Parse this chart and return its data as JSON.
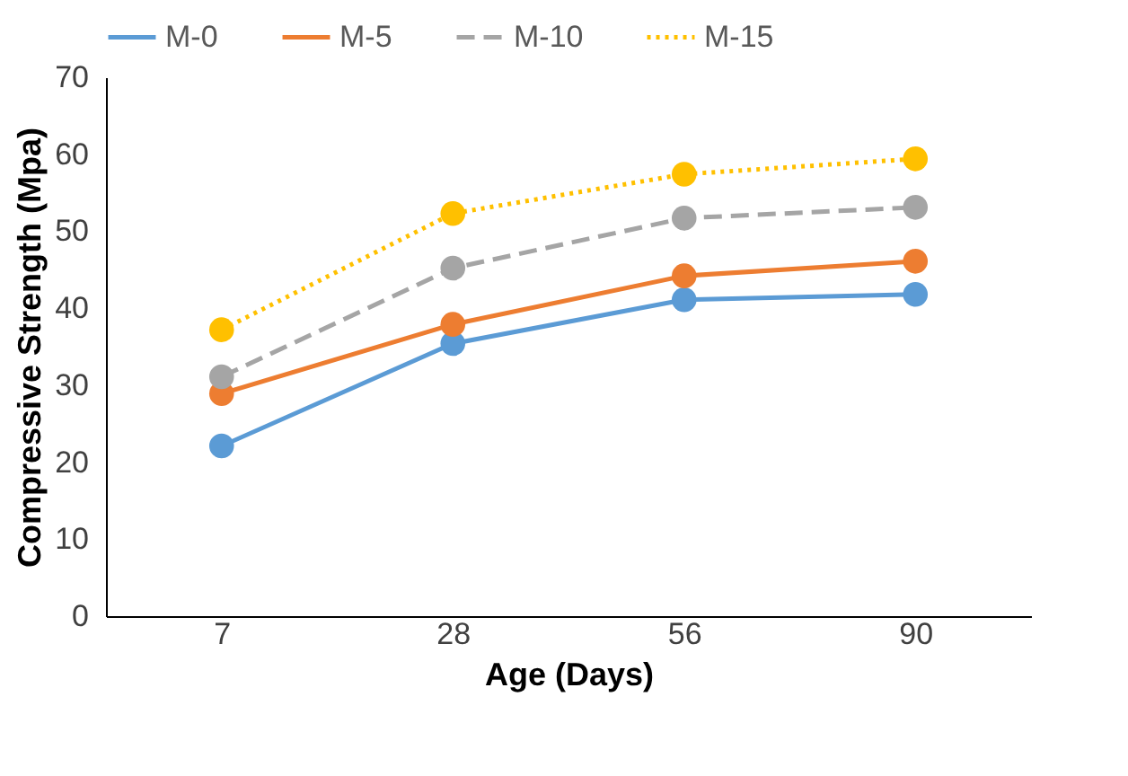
{
  "chart_data": {
    "type": "line",
    "xlabel": "Age (Days)",
    "ylabel": "Compressive Strength (Mpa)",
    "categories": [
      "7",
      "28",
      "56",
      "90"
    ],
    "series": [
      {
        "name": "M-0",
        "color": "#5b9bd5",
        "line_style": "solid",
        "values": [
          22.1,
          35.4,
          41.1,
          41.8
        ]
      },
      {
        "name": "M-5",
        "color": "#ed7d31",
        "line_style": "solid",
        "values": [
          28.9,
          37.9,
          44.2,
          46.1
        ]
      },
      {
        "name": "M-10",
        "color": "#a5a5a5",
        "line_style": "dashed",
        "values": [
          31.1,
          45.2,
          51.7,
          53.1
        ]
      },
      {
        "name": "M-15",
        "color": "#ffc000",
        "line_style": "dotted",
        "values": [
          37.2,
          52.3,
          57.4,
          59.4
        ]
      }
    ],
    "ylim": [
      0,
      70
    ],
    "yticks": [
      0,
      10,
      20,
      30,
      40,
      50,
      60,
      70
    ],
    "grid": false,
    "legend": "top",
    "marker": "circle"
  }
}
